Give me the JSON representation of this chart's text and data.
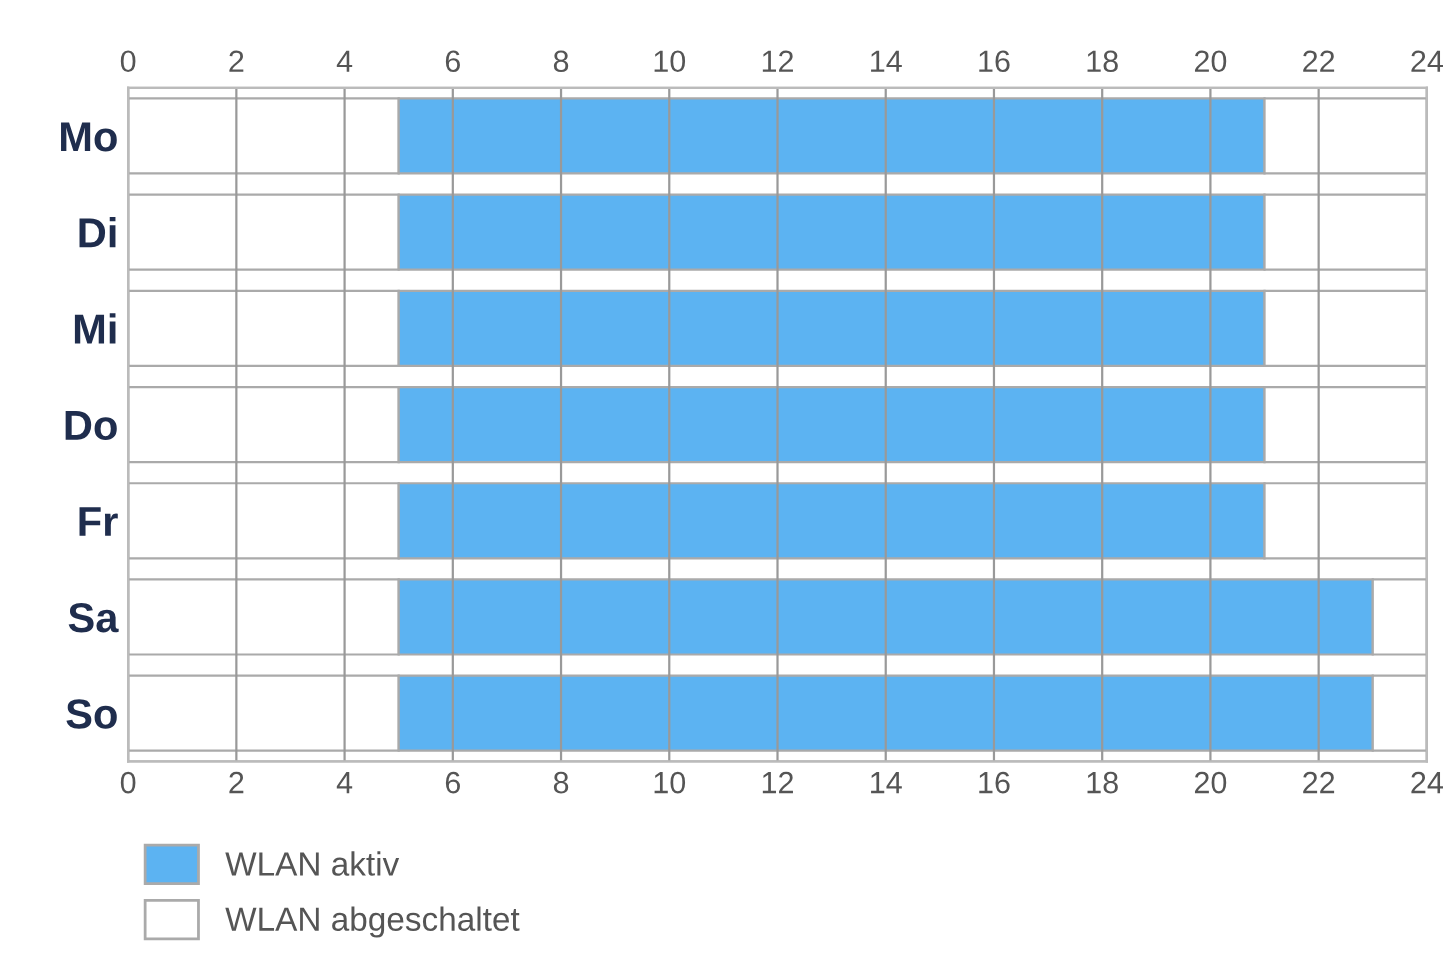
{
  "chart_data": {
    "type": "bar",
    "orientation": "horizontal",
    "stacked": true,
    "categories": [
      "Mo",
      "Di",
      "Mi",
      "Do",
      "Fr",
      "Sa",
      "So"
    ],
    "series": [
      {
        "name": "WLAN abgeschaltet",
        "color": "#ffffff",
        "values": [
          5,
          5,
          5,
          5,
          5,
          5,
          5
        ]
      },
      {
        "name": "WLAN aktiv",
        "color": "#5cb3f2",
        "values": [
          16,
          16,
          16,
          16,
          16,
          18,
          18
        ]
      },
      {
        "color": "#ffffff",
        "values": [
          3,
          3,
          3,
          3,
          3,
          1,
          1
        ]
      }
    ],
    "xlim": [
      0,
      24
    ],
    "xticks": [
      0,
      2,
      4,
      6,
      8,
      10,
      12,
      14,
      16,
      18,
      20,
      22,
      24
    ],
    "x2lim": [
      0,
      24
    ],
    "x2ticks": [
      0,
      2,
      4,
      6,
      8,
      10,
      12,
      14,
      16,
      18,
      20,
      22,
      24
    ],
    "grid": "x",
    "legend": "bottom left"
  }
}
